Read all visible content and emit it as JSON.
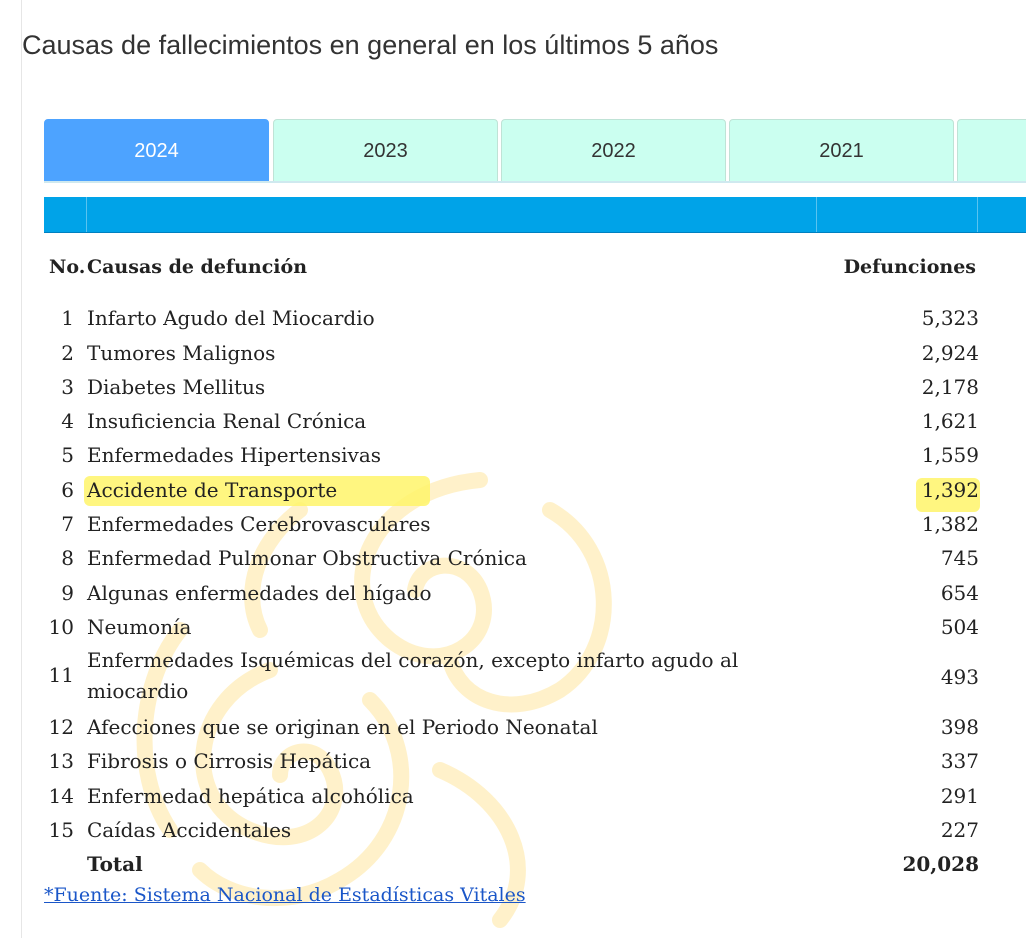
{
  "page": {
    "title": "Causas de fallecimientos en general en los últimos 5 años"
  },
  "tabs": [
    {
      "label": "2024",
      "active": true
    },
    {
      "label": "2023",
      "active": false
    },
    {
      "label": "2022",
      "active": false
    },
    {
      "label": "2021",
      "active": false
    },
    {
      "label": "",
      "active": false
    }
  ],
  "table": {
    "headers": {
      "no": "No.",
      "cause": "Causas de defunción",
      "deaths": "Defunciones"
    },
    "rows": [
      {
        "no": "1",
        "cause": "Infarto Agudo del Miocardio",
        "deaths": "5,323"
      },
      {
        "no": "2",
        "cause": "Tumores Malignos",
        "deaths": "2,924"
      },
      {
        "no": "3",
        "cause": "Diabetes Mellitus",
        "deaths": "2,178"
      },
      {
        "no": "4",
        "cause": "Insuficiencia Renal Crónica",
        "deaths": "1,621"
      },
      {
        "no": "5",
        "cause": "Enfermedades Hipertensivas",
        "deaths": "1,559"
      },
      {
        "no": "6",
        "cause": "Accidente de Transporte",
        "deaths": "1,392"
      },
      {
        "no": "7",
        "cause": "Enfermedades Cerebrovasculares",
        "deaths": "1,382"
      },
      {
        "no": "8",
        "cause": "Enfermedad Pulmonar Obstructiva Crónica",
        "deaths": "745"
      },
      {
        "no": "9",
        "cause": "Algunas enfermedades del hígado",
        "deaths": "654"
      },
      {
        "no": "10",
        "cause": "Neumonía",
        "deaths": "504"
      },
      {
        "no": "11",
        "cause": "Enfermedades Isquémicas del corazón, excepto infarto agudo al miocardio",
        "deaths": "493"
      },
      {
        "no": "12",
        "cause": "Afecciones que se originan en el Periodo Neonatal",
        "deaths": "398"
      },
      {
        "no": "13",
        "cause": "Fibrosis o Cirrosis Hepática",
        "deaths": "337"
      },
      {
        "no": "14",
        "cause": "Enfermedad hepática alcohólica",
        "deaths": "291"
      },
      {
        "no": "15",
        "cause": "Caídas Accidentales",
        "deaths": "227"
      }
    ],
    "total": {
      "label": "Total",
      "deaths": "20,028"
    }
  },
  "source": {
    "asterisk": "*",
    "text": "Fuente: Sistema Nacional de Estadísticas Vitales"
  },
  "colors": {
    "tab_active": "#4da3ff",
    "tab_inactive": "#cbfff0",
    "header_bar": "#00a3e8",
    "highlight": "#fff56a",
    "link": "#1a56c8"
  }
}
